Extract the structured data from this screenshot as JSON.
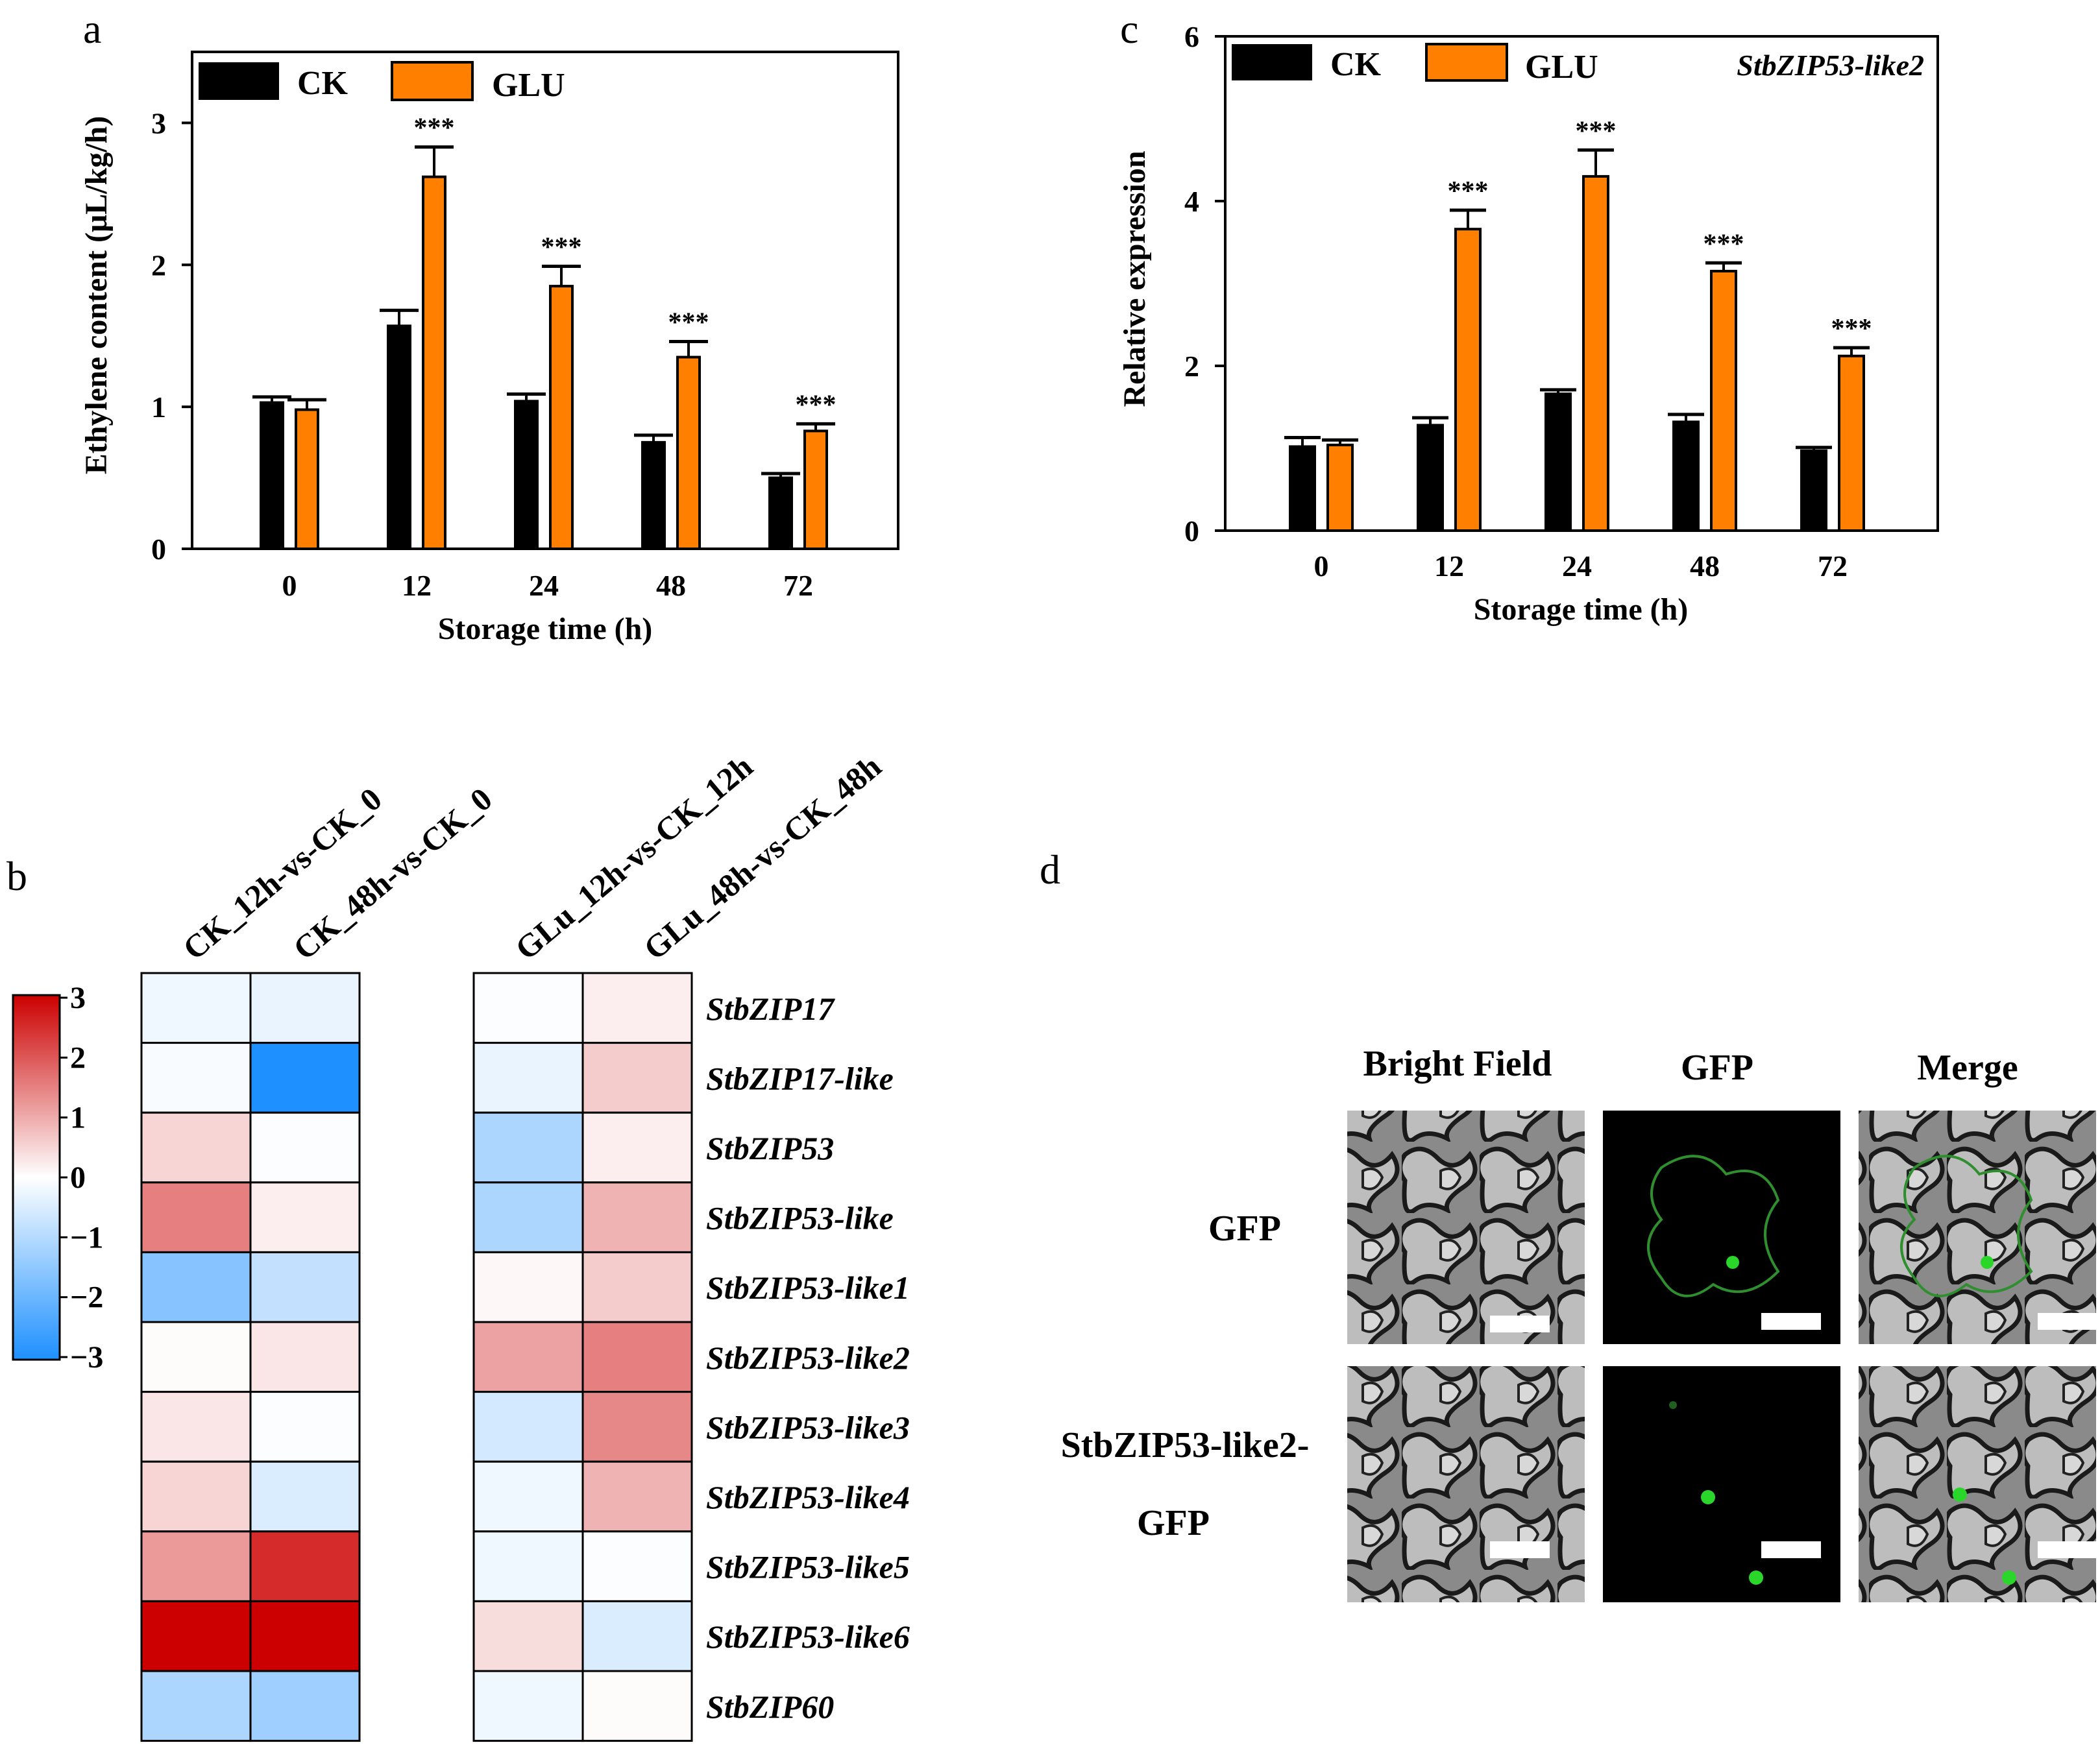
{
  "colors": {
    "ck": "#000000",
    "glu": "#ff8000",
    "frame": "#000000"
  },
  "panel_labels": {
    "a": "a",
    "b": "b",
    "c": "c",
    "d": "d"
  },
  "chart_data": [
    {
      "id": "a",
      "type": "bar",
      "categories": [
        "0",
        "12",
        "24",
        "48",
        "72"
      ],
      "series": [
        {
          "name": "CK",
          "values": [
            1.03,
            1.57,
            1.04,
            0.75,
            0.5
          ],
          "errors": [
            0.04,
            0.11,
            0.05,
            0.05,
            0.03
          ]
        },
        {
          "name": "GLU",
          "values": [
            0.98,
            2.62,
            1.85,
            1.35,
            0.83
          ],
          "errors": [
            0.07,
            0.21,
            0.14,
            0.11,
            0.05
          ]
        }
      ],
      "significance": [
        "",
        "***",
        "***",
        "***",
        "***"
      ],
      "xlabel": "Storage time (h)",
      "ylabel": "Ethylene content (μL/kg/h)",
      "ylim": [
        0,
        3.5
      ],
      "yticks": [
        "0",
        "1",
        "2",
        "3"
      ],
      "legend": [
        "CK",
        "GLU"
      ],
      "legend_position": "top-left"
    },
    {
      "id": "c",
      "type": "bar",
      "categories": [
        "0",
        "12",
        "24",
        "48",
        "72"
      ],
      "series": [
        {
          "name": "CK",
          "values": [
            1.02,
            1.28,
            1.66,
            1.32,
            0.97
          ],
          "errors": [
            0.11,
            0.09,
            0.05,
            0.09,
            0.04
          ]
        },
        {
          "name": "GLU",
          "values": [
            1.04,
            3.66,
            4.3,
            3.15,
            2.12
          ],
          "errors": [
            0.06,
            0.23,
            0.32,
            0.1,
            0.1
          ]
        }
      ],
      "significance": [
        "",
        "***",
        "***",
        "***",
        "***"
      ],
      "title": "StbZIP53-like2",
      "xlabel": "Storage time (h)",
      "ylabel": "Relative expression",
      "ylim": [
        0,
        6
      ],
      "yticks": [
        "0",
        "2",
        "4",
        "6"
      ],
      "legend": [
        "CK",
        "GLU"
      ],
      "legend_position": "top-left"
    },
    {
      "id": "b",
      "type": "heatmap",
      "genes": [
        "StbZIP17",
        "StbZIP17-like",
        "StbZIP53",
        "StbZIP53-like",
        "StbZIP53-like1",
        "StbZIP53-like2",
        "StbZIP53-like3",
        "StbZIP53-like4",
        "StbZIP53-like5",
        "StbZIP53-like6",
        "StbZIP60"
      ],
      "columns_left": [
        "CK_12h-vs-CK_0",
        "CK_48h-vs-CK_0"
      ],
      "columns_right": [
        "GLu_12h-vs-CK_12h",
        "GLu_48h-vs-CK_48h"
      ],
      "values_left": [
        [
          -0.2,
          -0.3
        ],
        [
          -0.1,
          -3.0
        ],
        [
          0.5,
          -0.05
        ],
        [
          1.5,
          0.2
        ],
        [
          -1.6,
          -0.8
        ],
        [
          0.05,
          0.3
        ],
        [
          0.3,
          -0.05
        ],
        [
          0.5,
          -0.5
        ],
        [
          1.2,
          2.5
        ],
        [
          3.0,
          3.0
        ],
        [
          -1.1,
          -1.3
        ]
      ],
      "values_right": [
        [
          -0.05,
          0.2
        ],
        [
          -0.3,
          0.6
        ],
        [
          -1.1,
          0.2
        ],
        [
          -1.1,
          0.9
        ],
        [
          0.1,
          0.6
        ],
        [
          1.1,
          1.5
        ],
        [
          -0.6,
          1.4
        ],
        [
          -0.2,
          0.9
        ],
        [
          -0.2,
          -0.05
        ],
        [
          0.4,
          -0.5
        ],
        [
          -0.2,
          0.05
        ]
      ],
      "colorbar": {
        "min": -3,
        "max": 3,
        "ticks": [
          "3",
          "2",
          "1",
          "0",
          "−1",
          "−2",
          "−3"
        ],
        "low": "#1e90ff",
        "mid": "#ffffff",
        "high": "#cc0000"
      }
    }
  ],
  "microscopy": {
    "columns": [
      "Bright Field",
      "GFP",
      "Merge"
    ],
    "row1_label": "GFP",
    "row2_label_line1": "StbZIP53-like2-",
    "row2_label_line2": "GFP"
  }
}
